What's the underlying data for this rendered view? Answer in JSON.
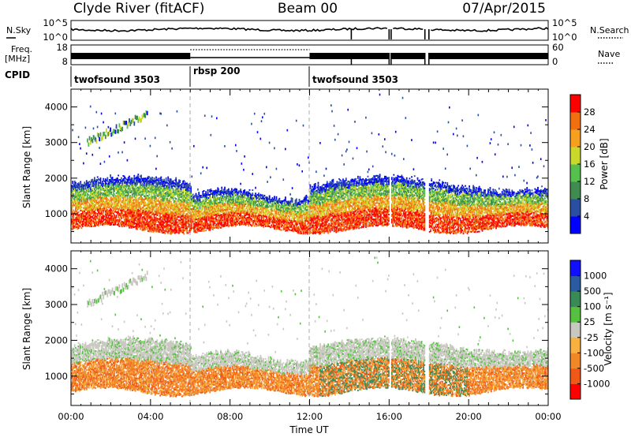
{
  "header": {
    "station": "Clyde River (fitACF)",
    "beam": "Beam 00",
    "date": "07/Apr/2015"
  },
  "top_panel": {
    "left_label": "N.Sky",
    "left_ticks": [
      "10^5",
      "10^0"
    ],
    "right_label": "N.Search",
    "right_ticks": [
      "10^5",
      "10^0"
    ]
  },
  "freq_panel": {
    "left_label_line1": "Freq.",
    "left_label_line2": "[MHz]",
    "left_ticks": [
      "18",
      "8"
    ],
    "right_label": "Nave",
    "right_ticks": [
      "60",
      "0"
    ]
  },
  "cpid": {
    "label": "CPID",
    "segments": [
      {
        "name": "twofsound 3503",
        "start_hour": 0,
        "end_hour": 6
      },
      {
        "name": "rbsp 200",
        "start_hour": 6,
        "end_hour": 12
      },
      {
        "name": "twofsound 3503",
        "start_hour": 12,
        "end_hour": 24
      }
    ]
  },
  "x_axis": {
    "label": "Time UT",
    "ticks": [
      "00:00",
      "04:00",
      "08:00",
      "12:00",
      "16:00",
      "20:00",
      "00:00"
    ]
  },
  "colors": {
    "power_scale": [
      "#0000ff",
      "#2b4fa0",
      "#3f8b50",
      "#56bf4e",
      "#c9d82a",
      "#f6a020",
      "#f07010",
      "#ff0000"
    ],
    "velocity_scale": [
      "#ff0000",
      "#f05818",
      "#f08828",
      "#f8b040",
      "#c8c8c0",
      "#56c040",
      "#3a8a58",
      "#2a5aa0",
      "#1010ff"
    ]
  },
  "chart_data": [
    {
      "type": "heatmap",
      "name": "power",
      "ylabel": "Slant Range [km]",
      "yticks": [
        1000,
        2000,
        3000,
        4000
      ],
      "ylim": [
        180,
        4500
      ],
      "xlim_hours": [
        0,
        24
      ],
      "colorbar": {
        "label": "Power [dB]",
        "ticks": [
          "4",
          "8",
          "12",
          "16",
          "20",
          "24",
          "28"
        ],
        "range": [
          0,
          30
        ]
      },
      "data_gaps_hours": [
        [
          16.0,
          16.1
        ],
        [
          17.8,
          18.0
        ]
      ]
    },
    {
      "type": "heatmap",
      "name": "velocity",
      "ylabel": "Slant Range [km]",
      "yticks": [
        1000,
        2000,
        3000,
        4000
      ],
      "ylim": [
        180,
        4500
      ],
      "xlim_hours": [
        0,
        24
      ],
      "colorbar": {
        "label": "Velocity [m s⁻¹]",
        "ticks": [
          "1000",
          "500",
          "100",
          "25",
          "-25",
          "-100",
          "-500",
          "-1000"
        ]
      },
      "data_gaps_hours": [
        [
          16.0,
          16.1
        ],
        [
          17.8,
          18.0
        ]
      ]
    }
  ]
}
